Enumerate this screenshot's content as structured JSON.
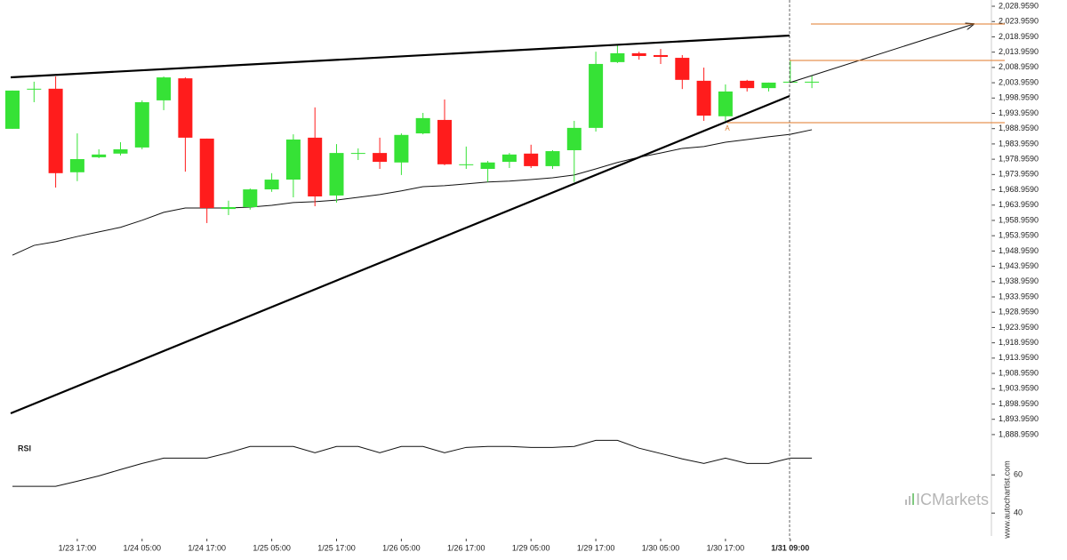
{
  "chart_data": {
    "type": "candlestick",
    "categories": [
      null,
      null,
      null,
      "1/23 17:00",
      null,
      null,
      "1/24 05:00",
      null,
      null,
      "1/24 17:00",
      null,
      null,
      "1/25 05:00",
      null,
      null,
      "1/25 17:00",
      null,
      null,
      "1/26 05:00",
      null,
      null,
      "1/26 17:00",
      null,
      null,
      "1/29 05:00",
      null,
      null,
      "1/29 17:00",
      null,
      null,
      "1/30 05:00",
      null,
      null,
      "1/30 17:00",
      null,
      null,
      "1/31 09:00",
      null
    ],
    "open": [
      1988.9,
      2001.9,
      2002.0,
      1974.7,
      1979.6,
      1980.8,
      1982.8,
      1998.2,
      2005.4,
      1985.7,
      1962.7,
      1963.3,
      1969.1,
      1972.3,
      1986.0,
      1967.1,
      1980.8,
      1981.0,
      1977.9,
      1987.4,
      1991.8,
      1977.2,
      1975.8,
      1978.1,
      1980.8,
      1976.7,
      1981.9,
      1989.2,
      2010.7,
      2013.6,
      2013.0,
      2012.1,
      2004.6,
      1993.0,
      2004.6,
      2002.2,
      2004.0,
      2004.3
    ],
    "high": [
      2001.4,
      2004.3,
      2006.0,
      1987.4,
      1982.2,
      1984.5,
      1998.2,
      2006.0,
      2005.7,
      1985.7,
      1965.4,
      1969.4,
      1974.4,
      1987.1,
      1995.9,
      1983.9,
      1982.5,
      1986.0,
      1987.4,
      1994.1,
      1998.5,
      1983.1,
      1978.4,
      1981.0,
      1983.7,
      1981.9,
      1991.5,
      2014.1,
      2016.2,
      2014.1,
      2015.0,
      2013.0,
      2008.9,
      2003.4,
      2004.9,
      2004.0,
      2011.2,
      2006.3
    ],
    "low": [
      1988.9,
      1997.6,
      1969.7,
      1971.8,
      1979.3,
      1980.2,
      1982.2,
      1995.0,
      1974.9,
      1958.1,
      1960.7,
      1962.5,
      1968.3,
      1966.5,
      1963.6,
      1964.8,
      1978.7,
      1975.8,
      1973.8,
      1987.1,
      1977.0,
      1975.8,
      1971.5,
      1976.1,
      1976.1,
      1975.8,
      1971.5,
      1988.0,
      2010.4,
      2011.5,
      2010.1,
      2001.9,
      1991.5,
      1991.5,
      2001.1,
      2001.1,
      2004.0,
      2002.2
    ],
    "close": [
      2001.4,
      2002.0,
      1974.4,
      1979.0,
      1980.5,
      1982.2,
      1997.6,
      2005.7,
      1986.0,
      1963.0,
      1963.3,
      1969.1,
      1972.3,
      1985.4,
      1966.8,
      1981.0,
      1981.0,
      1978.1,
      1986.9,
      1992.4,
      1977.3,
      1977.3,
      1977.9,
      1980.5,
      1976.7,
      1981.6,
      1989.2,
      2010.1,
      2013.6,
      2012.7,
      2012.4,
      2004.9,
      1993.2,
      2001.1,
      2002.2,
      2004.0,
      2004.3,
      2004.3
    ],
    "up_color": "#36e236",
    "down_color": "#ff1c1c",
    "moving_average": [
      1947.6,
      1950.8,
      1952.0,
      1953.7,
      1955.2,
      1956.7,
      1959.0,
      1961.6,
      1963.0,
      1963.0,
      1963.0,
      1963.3,
      1963.9,
      1964.8,
      1965.1,
      1965.6,
      1966.5,
      1967.4,
      1968.6,
      1970.0,
      1970.3,
      1970.9,
      1971.5,
      1971.8,
      1972.3,
      1972.9,
      1973.8,
      1975.8,
      1977.9,
      1979.6,
      1981.0,
      1982.5,
      1983.1,
      1984.5,
      1985.4,
      1986.3,
      1987.1,
      1988.6
    ],
    "ylim": [
      1886.9,
      2031.0
    ],
    "yticks": [
      {
        "value": 2028.959,
        "label": "2,028.9590"
      },
      {
        "value": 2023.959,
        "label": "2,023.9590"
      },
      {
        "value": 2018.959,
        "label": "2,018.9590"
      },
      {
        "value": 2013.959,
        "label": "2,013.9590"
      },
      {
        "value": 2008.959,
        "label": "2,008.9590"
      },
      {
        "value": 2003.959,
        "label": "2,003.9590"
      },
      {
        "value": 1998.959,
        "label": "1,998.9590"
      },
      {
        "value": 1993.959,
        "label": "1,993.9590"
      },
      {
        "value": 1988.959,
        "label": "1,988.9590"
      },
      {
        "value": 1983.959,
        "label": "1,983.9590"
      },
      {
        "value": 1978.959,
        "label": "1,978.9590"
      },
      {
        "value": 1973.959,
        "label": "1,973.9590"
      },
      {
        "value": 1968.959,
        "label": "1,968.9590"
      },
      {
        "value": 1963.959,
        "label": "1,963.9590"
      },
      {
        "value": 1958.959,
        "label": "1,958.9590"
      },
      {
        "value": 1953.959,
        "label": "1,953.9590"
      },
      {
        "value": 1948.959,
        "label": "1,948.9590"
      },
      {
        "value": 1943.959,
        "label": "1,943.9590"
      },
      {
        "value": 1938.959,
        "label": "1,938.9590"
      },
      {
        "value": 1933.959,
        "label": "1,933.9590"
      },
      {
        "value": 1928.959,
        "label": "1,928.9590"
      },
      {
        "value": 1923.959,
        "label": "1,923.9590"
      },
      {
        "value": 1918.959,
        "label": "1,918.9590"
      },
      {
        "value": 1913.959,
        "label": "1,913.9590"
      },
      {
        "value": 1908.959,
        "label": "1,908.9590"
      },
      {
        "value": 1903.959,
        "label": "1,903.9590"
      },
      {
        "value": 1898.959,
        "label": "1,898.9590"
      },
      {
        "value": 1893.959,
        "label": "1,893.9590"
      },
      {
        "value": 1888.959,
        "label": "1,888.9590"
      }
    ],
    "annotation": "A",
    "rsi": {
      "title": "RSI",
      "values": [
        54.0,
        54.0,
        54.0,
        56.7,
        59.5,
        62.8,
        66.0,
        68.8,
        68.8,
        68.8,
        71.6,
        74.9,
        74.9,
        74.9,
        71.6,
        74.9,
        74.9,
        71.6,
        74.9,
        74.9,
        71.6,
        74.4,
        74.9,
        74.9,
        74.4,
        74.4,
        74.9,
        78.1,
        78.1,
        74.0,
        71.2,
        68.4,
        66.0,
        68.8,
        66.0,
        66.0,
        68.8,
        68.8
      ],
      "ylim": [
        28,
        82
      ],
      "yticks": [
        40,
        60
      ]
    },
    "watermark": "www.autochartist.com",
    "brand": "ICMarkets"
  }
}
